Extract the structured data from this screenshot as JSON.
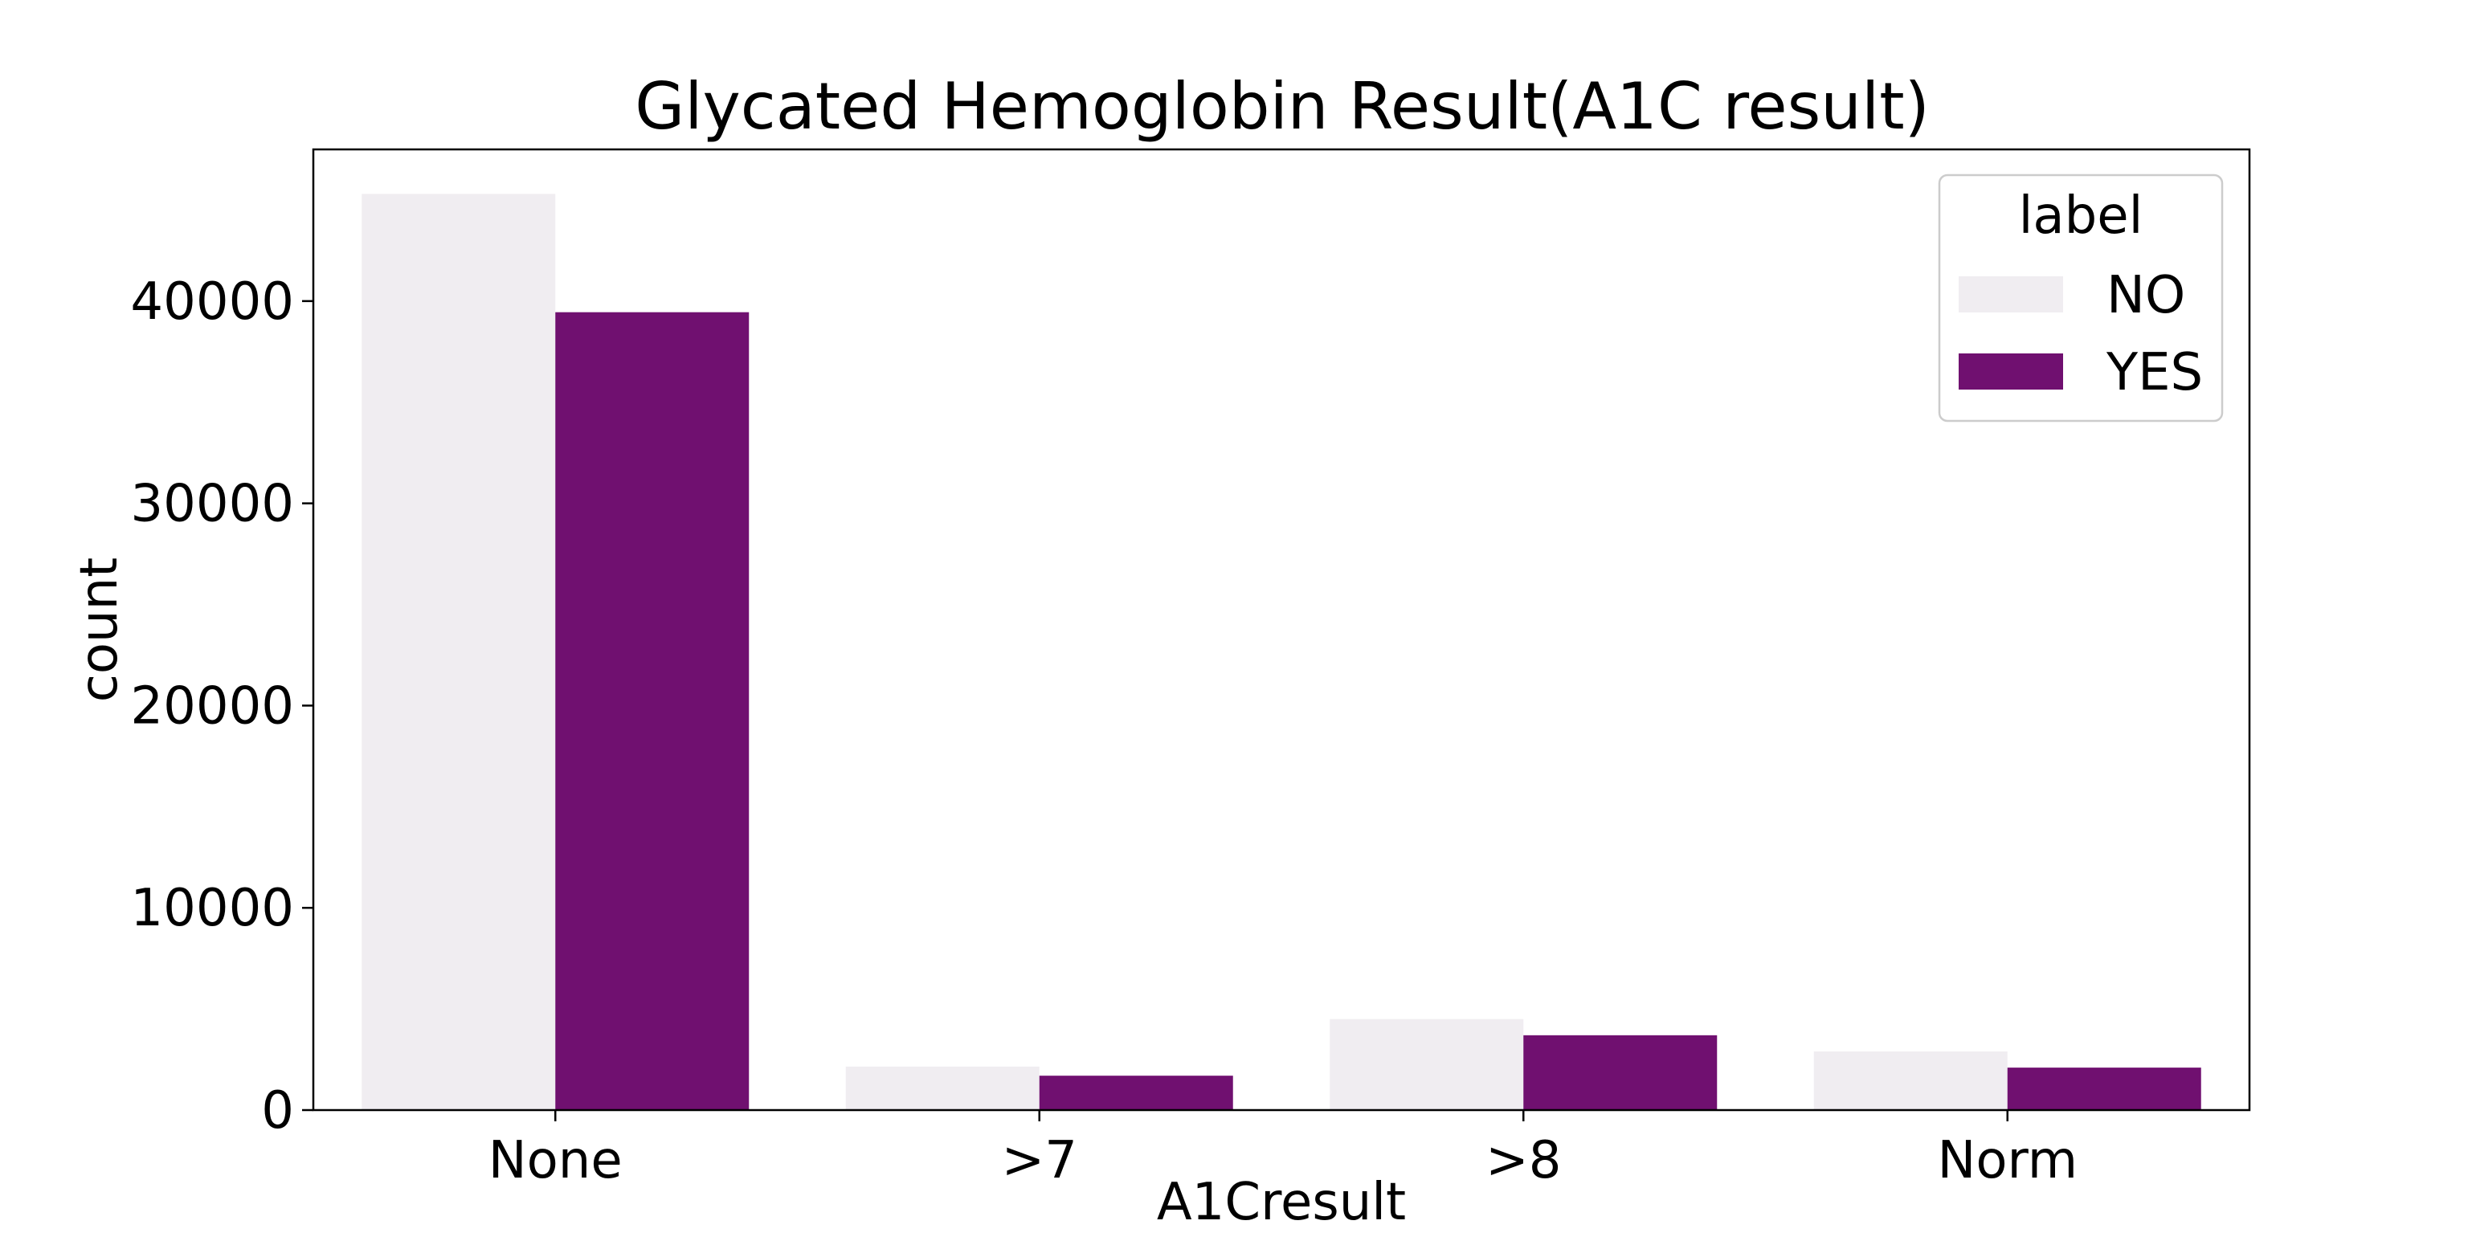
{
  "chart_data": {
    "type": "bar",
    "title": "Glycated Hemoglobin Result(A1C result)",
    "xlabel": "A1Cresult",
    "ylabel": "count",
    "categories": [
      "None",
      ">7",
      ">8",
      "Norm"
    ],
    "series": [
      {
        "name": "NO",
        "color": "#f0edf1",
        "values": [
          45300,
          2150,
          4500,
          2900
        ]
      },
      {
        "name": "YES",
        "color": "#701070",
        "values": [
          39450,
          1700,
          3700,
          2100
        ]
      }
    ],
    "ylim": [
      0,
      47500
    ],
    "yticks": [
      0,
      10000,
      20000,
      30000,
      40000
    ],
    "ytick_labels": [
      "0",
      "10000",
      "20000",
      "30000",
      "40000"
    ],
    "legend": {
      "title": "label",
      "position": "top-right",
      "entries": [
        "NO",
        "YES"
      ]
    },
    "grid": false
  }
}
